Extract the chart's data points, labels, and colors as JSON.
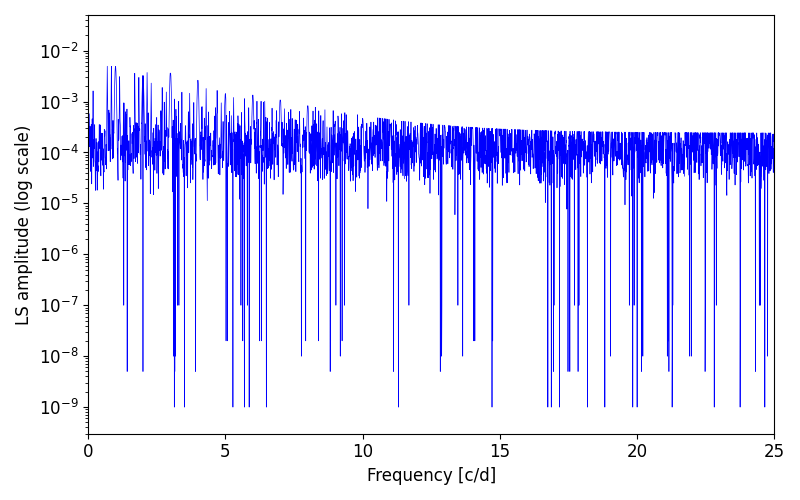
{
  "xlabel": "Frequency [c/d]",
  "ylabel": "LS amplitude (log scale)",
  "line_color": "#0000ff",
  "line_width": 0.5,
  "xlim": [
    0,
    25
  ],
  "ylim": [
    3e-10,
    0.05
  ],
  "num_points": 3000,
  "freq_max": 25.0,
  "base_amplitude": 0.00012,
  "seed": 12345,
  "background_color": "#ffffff",
  "tick_labelsize": 12,
  "label_fontsize": 12
}
